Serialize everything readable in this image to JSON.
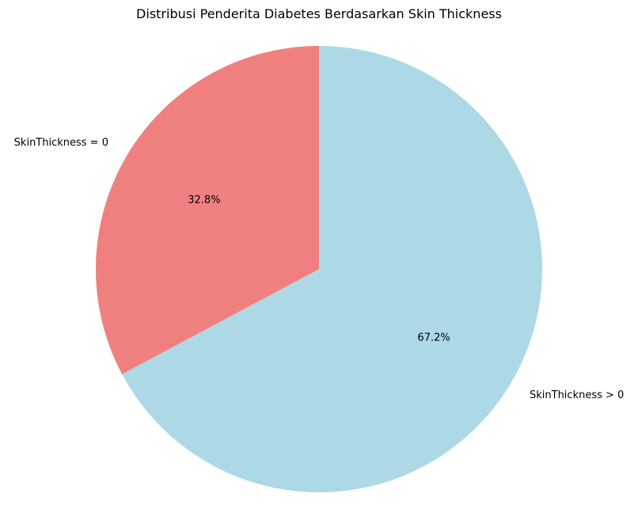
{
  "chart_data": {
    "type": "pie",
    "title": "Distribusi Penderita Diabetes Berdasarkan Skin Thickness",
    "start_angle_deg": 90,
    "direction": "counterclockwise",
    "slices": [
      {
        "label": "SkinThickness = 0",
        "percent": 32.8,
        "percent_label": "32.8%",
        "color": "#F08080"
      },
      {
        "label": "SkinThickness > 0",
        "percent": 67.2,
        "percent_label": "67.2%",
        "color": "#ADD8E6"
      }
    ]
  }
}
